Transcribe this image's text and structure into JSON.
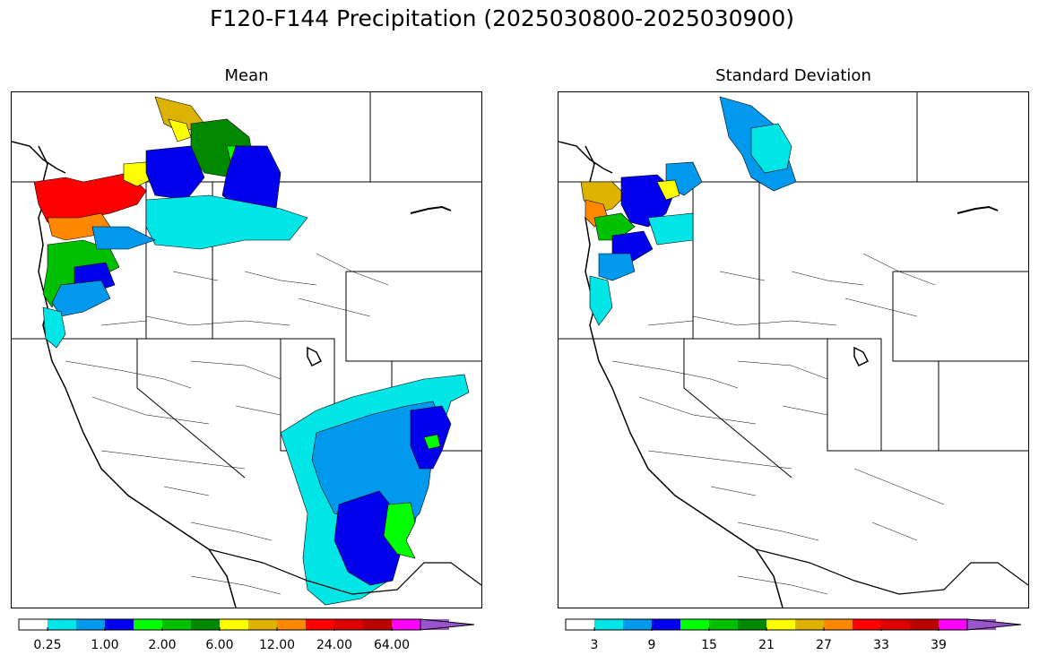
{
  "figure": {
    "title": "F120-F144 Precipitation (2025030800-2025030900)"
  },
  "panels": [
    {
      "id": "mean",
      "title": "Mean",
      "colorbar": {
        "colors": [
          "#ffffff",
          "#00e5e5",
          "#0099ee",
          "#0000ee",
          "#00ff00",
          "#00c000",
          "#008800",
          "#ffff00",
          "#ddb200",
          "#ff8800",
          "#ff0000",
          "#dd0000",
          "#bb0000",
          "#ff00ff",
          "#9955cc"
        ],
        "tick_labels": [
          "0.25",
          "1.00",
          "2.00",
          "6.00",
          "12.00",
          "24.00",
          "64.00"
        ],
        "extend": "max"
      }
    },
    {
      "id": "stddev",
      "title": "Standard Deviation",
      "colorbar": {
        "colors": [
          "#ffffff",
          "#00e5e5",
          "#0099ee",
          "#0000ee",
          "#00ff00",
          "#00c000",
          "#008800",
          "#ffff00",
          "#ddb200",
          "#ff8800",
          "#ff0000",
          "#dd0000",
          "#bb0000",
          "#ff00ff",
          "#9955cc"
        ],
        "tick_labels": [
          "3",
          "9",
          "15",
          "21",
          "27",
          "33",
          "39"
        ],
        "extend": "max"
      }
    }
  ]
}
